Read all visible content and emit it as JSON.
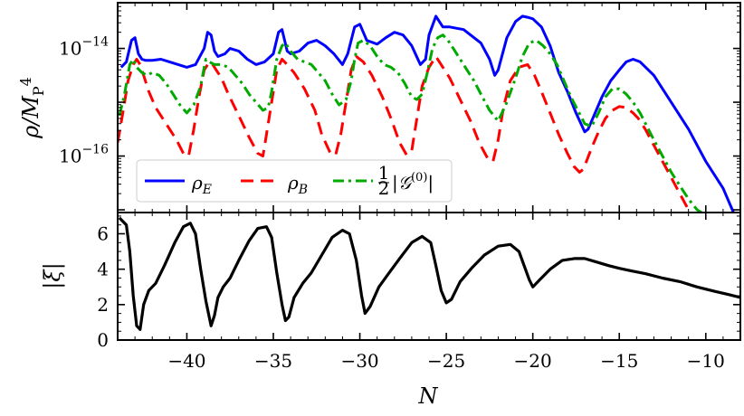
{
  "chart_data": [
    {
      "type": "line",
      "panel": "top",
      "ylabel": "ρ/M_P^4",
      "yscale": "log",
      "xlim": [
        -44,
        -8
      ],
      "ylim_log10": [
        -17.05,
        -13.15
      ],
      "yticks": [
        {
          "value": -14,
          "base": "10",
          "exp": "−14"
        },
        {
          "value": -16,
          "base": "10",
          "exp": "−16"
        }
      ],
      "legend_position": "lower-left",
      "series": [
        {
          "name": "ρ_E",
          "legend_main": "ρ",
          "legend_sub": "E",
          "color": "#0000ff",
          "dash": "solid",
          "x": [
            -43.8,
            -43.5,
            -43.2,
            -43.0,
            -42.8,
            -42.6,
            -42.4,
            -42.0,
            -41.5,
            -41.0,
            -40.5,
            -40.0,
            -39.5,
            -39.0,
            -38.8,
            -38.6,
            -38.4,
            -38.2,
            -37.8,
            -37.5,
            -37.0,
            -36.5,
            -36.0,
            -35.5,
            -35.0,
            -34.7,
            -34.5,
            -34.2,
            -34.0,
            -33.5,
            -33.0,
            -32.5,
            -32.0,
            -31.5,
            -31.0,
            -30.7,
            -30.3,
            -30.0,
            -29.6,
            -29.0,
            -28.5,
            -28.0,
            -27.5,
            -27.0,
            -26.5,
            -26.2,
            -26.0,
            -25.6,
            -25.2,
            -24.8,
            -24.0,
            -23.0,
            -22.5,
            -22.2,
            -22.0,
            -21.5,
            -21.0,
            -20.6,
            -20.3,
            -20.0,
            -19.5,
            -19.0,
            -18.5,
            -18.0,
            -17.5,
            -17.0,
            -16.8,
            -16.4,
            -16.0,
            -15.5,
            -15.0,
            -14.6,
            -14.2,
            -13.8,
            -13.0,
            -12.0,
            -11.0,
            -10.0,
            -9.0,
            -8.4
          ],
          "y_log10": [
            -14.35,
            -14.25,
            -13.85,
            -13.8,
            -14.1,
            -14.2,
            -14.22,
            -14.22,
            -14.2,
            -14.25,
            -14.3,
            -14.35,
            -14.3,
            -14.0,
            -13.7,
            -13.75,
            -14.05,
            -14.15,
            -14.1,
            -14.0,
            -14.05,
            -14.2,
            -14.3,
            -14.25,
            -14.1,
            -13.7,
            -13.65,
            -14.05,
            -14.1,
            -14.05,
            -13.9,
            -13.85,
            -13.95,
            -14.1,
            -14.3,
            -14.1,
            -13.6,
            -13.55,
            -13.85,
            -13.92,
            -13.8,
            -13.7,
            -13.75,
            -13.95,
            -14.3,
            -14.2,
            -13.75,
            -13.4,
            -13.6,
            -13.6,
            -13.65,
            -13.9,
            -14.2,
            -14.5,
            -14.4,
            -13.8,
            -13.5,
            -13.4,
            -13.42,
            -13.45,
            -13.6,
            -13.95,
            -14.45,
            -14.8,
            -15.2,
            -15.55,
            -15.5,
            -15.2,
            -14.9,
            -14.6,
            -14.4,
            -14.25,
            -14.2,
            -14.25,
            -14.5,
            -15.0,
            -15.5,
            -16.1,
            -16.6,
            -17.05
          ]
        },
        {
          "name": "ρ_B",
          "legend_main": "ρ",
          "legend_sub": "B",
          "color": "#ff0000",
          "dash": "dashed",
          "x": [
            -44.0,
            -43.7,
            -43.4,
            -43.1,
            -42.9,
            -42.7,
            -42.5,
            -42.2,
            -41.8,
            -41.2,
            -40.6,
            -40.2,
            -39.9,
            -39.6,
            -39.3,
            -39.0,
            -38.7,
            -38.5,
            -38.3,
            -38.0,
            -37.6,
            -37.0,
            -36.4,
            -35.9,
            -35.6,
            -35.4,
            -35.1,
            -34.8,
            -34.5,
            -34.2,
            -33.8,
            -33.2,
            -32.6,
            -32.2,
            -31.7,
            -31.4,
            -31.1,
            -30.8,
            -30.5,
            -30.2,
            -29.8,
            -29.3,
            -28.7,
            -28.2,
            -27.7,
            -27.3,
            -27.0,
            -26.7,
            -26.4,
            -26.0,
            -25.6,
            -25.2,
            -24.8,
            -24.2,
            -23.6,
            -23.1,
            -22.6,
            -22.3,
            -22.0,
            -21.7,
            -21.3,
            -20.8,
            -20.3,
            -19.9,
            -19.5,
            -19.0,
            -18.5,
            -18.0,
            -17.6,
            -17.3,
            -17.1,
            -16.9,
            -16.6,
            -16.2,
            -15.8,
            -15.4,
            -15.0,
            -14.6,
            -14.2,
            -13.9,
            -13.5,
            -13.0,
            -12.5,
            -12.0,
            -11.5,
            -11.0,
            -10.7
          ],
          "y_log10": [
            -15.75,
            -15.2,
            -14.6,
            -14.3,
            -14.2,
            -14.3,
            -14.5,
            -14.8,
            -15.1,
            -15.4,
            -15.7,
            -15.95,
            -16.0,
            -15.5,
            -14.9,
            -14.4,
            -14.25,
            -14.3,
            -14.4,
            -14.55,
            -14.85,
            -15.25,
            -15.65,
            -15.95,
            -16.0,
            -15.6,
            -15.0,
            -14.4,
            -14.2,
            -14.3,
            -14.45,
            -14.75,
            -15.15,
            -15.6,
            -15.95,
            -15.98,
            -15.6,
            -15.0,
            -14.4,
            -14.15,
            -14.25,
            -14.5,
            -14.9,
            -15.3,
            -15.75,
            -15.98,
            -15.9,
            -15.3,
            -14.7,
            -14.35,
            -14.15,
            -14.35,
            -14.55,
            -14.95,
            -15.35,
            -15.75,
            -16.05,
            -16.1,
            -15.7,
            -15.1,
            -14.6,
            -14.35,
            -14.3,
            -14.5,
            -14.8,
            -15.2,
            -15.6,
            -15.95,
            -16.2,
            -16.3,
            -16.25,
            -16.1,
            -15.85,
            -15.55,
            -15.3,
            -15.15,
            -15.08,
            -15.1,
            -15.2,
            -15.3,
            -15.5,
            -15.8,
            -16.1,
            -16.4,
            -16.7,
            -17.0,
            -17.1
          ]
        },
        {
          "name": "½|𝒢⁽⁰⁾|",
          "legend_main": "|𝒢",
          "legend_sup": "(0)",
          "legend_tail": "|",
          "legend_frac_num": "1",
          "legend_frac_den": "2",
          "color": "#00aa00",
          "dash": "dashdot",
          "x": [
            -43.9,
            -43.6,
            -43.3,
            -43.1,
            -42.9,
            -42.6,
            -42.3,
            -42.0,
            -41.6,
            -41.2,
            -40.8,
            -40.4,
            -40.0,
            -39.6,
            -39.2,
            -39.0,
            -38.9,
            -38.7,
            -38.4,
            -38.0,
            -37.6,
            -37.2,
            -36.8,
            -36.4,
            -36.0,
            -35.6,
            -35.3,
            -35.1,
            -34.8,
            -34.5,
            -34.3,
            -34.0,
            -33.6,
            -33.2,
            -32.8,
            -32.4,
            -32.0,
            -31.6,
            -31.2,
            -30.8,
            -30.5,
            -30.3,
            -30.1,
            -29.8,
            -29.4,
            -29.0,
            -28.6,
            -28.2,
            -27.8,
            -27.4,
            -27.0,
            -26.7,
            -26.4,
            -26.1,
            -25.8,
            -25.5,
            -25.2,
            -24.9,
            -24.6,
            -24.2,
            -23.8,
            -23.4,
            -23.0,
            -22.5,
            -22.0,
            -21.5,
            -21.0,
            -20.6,
            -20.2,
            -19.8,
            -19.4,
            -19.0,
            -18.6,
            -18.2,
            -17.8,
            -17.4,
            -17.0,
            -16.6,
            -16.2,
            -15.8,
            -15.4,
            -15.0,
            -14.6,
            -14.2,
            -13.8,
            -13.4,
            -13.0,
            -12.5,
            -12.0,
            -11.5,
            -11.0,
            -10.5,
            -10.0,
            -9.7
          ],
          "y_log10": [
            -15.25,
            -14.85,
            -14.3,
            -14.2,
            -14.35,
            -14.45,
            -14.5,
            -14.45,
            -14.5,
            -14.65,
            -14.85,
            -15.05,
            -15.2,
            -15.05,
            -14.7,
            -14.35,
            -14.2,
            -14.25,
            -14.3,
            -14.3,
            -14.35,
            -14.5,
            -14.65,
            -14.85,
            -15.0,
            -15.15,
            -15.1,
            -14.8,
            -14.2,
            -13.95,
            -13.9,
            -14.05,
            -14.2,
            -14.25,
            -14.3,
            -14.45,
            -14.6,
            -14.85,
            -15.05,
            -14.95,
            -14.6,
            -14.2,
            -13.9,
            -13.85,
            -13.95,
            -14.15,
            -14.3,
            -14.35,
            -14.45,
            -14.65,
            -14.9,
            -14.95,
            -14.85,
            -14.45,
            -14.0,
            -13.8,
            -13.75,
            -13.85,
            -14.0,
            -14.2,
            -14.4,
            -14.6,
            -14.85,
            -15.15,
            -15.35,
            -15.0,
            -14.55,
            -14.15,
            -13.9,
            -13.85,
            -13.95,
            -14.1,
            -14.3,
            -14.6,
            -14.9,
            -15.15,
            -15.4,
            -15.45,
            -15.2,
            -14.9,
            -14.75,
            -14.75,
            -14.85,
            -15.0,
            -15.2,
            -15.45,
            -15.7,
            -16.0,
            -16.3,
            -16.55,
            -16.8,
            -17.0,
            -17.1,
            -17.2
          ]
        }
      ]
    },
    {
      "type": "line",
      "panel": "bottom",
      "xlabel": "N",
      "ylabel": "|ξ|",
      "xlim": [
        -44,
        -8
      ],
      "ylim": [
        0,
        7.2
      ],
      "xticks": [
        "−40",
        "−35",
        "−30",
        "−25",
        "−20",
        "−15",
        "−10"
      ],
      "xtick_values": [
        -40,
        -35,
        -30,
        -25,
        -20,
        -15,
        -10
      ],
      "yticks": [
        "0",
        "2",
        "4",
        "6"
      ],
      "ytick_values": [
        0,
        2,
        4,
        6
      ],
      "series": [
        {
          "color": "#000000",
          "dash": "solid",
          "x": [
            -43.9,
            -43.5,
            -43.3,
            -43.1,
            -42.9,
            -42.7,
            -42.5,
            -42.2,
            -41.8,
            -41.3,
            -40.7,
            -40.2,
            -39.8,
            -39.5,
            -39.2,
            -38.9,
            -38.6,
            -38.4,
            -38.2,
            -37.9,
            -37.5,
            -37.0,
            -36.4,
            -35.9,
            -35.4,
            -35.1,
            -34.8,
            -34.5,
            -34.3,
            -34.1,
            -33.8,
            -33.3,
            -32.8,
            -32.2,
            -31.6,
            -31.0,
            -30.6,
            -30.2,
            -29.9,
            -29.7,
            -29.4,
            -28.9,
            -28.3,
            -27.7,
            -27.0,
            -26.4,
            -25.9,
            -25.6,
            -25.3,
            -25.0,
            -24.7,
            -24.2,
            -23.5,
            -22.8,
            -22.0,
            -21.3,
            -20.8,
            -20.5,
            -20.2,
            -20.0,
            -19.6,
            -19.0,
            -18.3,
            -17.6,
            -17.0,
            -16.3,
            -15.6,
            -15.0,
            -14.3,
            -13.5,
            -12.5,
            -11.5,
            -10.5,
            -9.5,
            -8.6,
            -8.0
          ],
          "y": [
            6.9,
            6.5,
            5.0,
            2.5,
            0.8,
            0.6,
            2.0,
            2.8,
            3.2,
            4.2,
            5.5,
            6.4,
            6.6,
            6.0,
            4.0,
            2.2,
            0.8,
            1.4,
            2.4,
            3.0,
            3.5,
            4.5,
            5.6,
            6.3,
            6.4,
            5.8,
            3.8,
            2.0,
            1.1,
            1.3,
            2.4,
            3.2,
            3.8,
            4.8,
            5.8,
            6.2,
            6.0,
            4.5,
            2.5,
            1.5,
            1.9,
            3.0,
            3.8,
            4.6,
            5.5,
            5.85,
            5.5,
            4.2,
            2.8,
            2.1,
            2.3,
            3.3,
            4.1,
            4.8,
            5.3,
            5.4,
            5.0,
            4.2,
            3.4,
            3.0,
            3.4,
            4.0,
            4.5,
            4.6,
            4.6,
            4.4,
            4.2,
            4.05,
            3.9,
            3.75,
            3.5,
            3.3,
            3.0,
            2.75,
            2.55,
            2.4
          ]
        }
      ]
    }
  ]
}
